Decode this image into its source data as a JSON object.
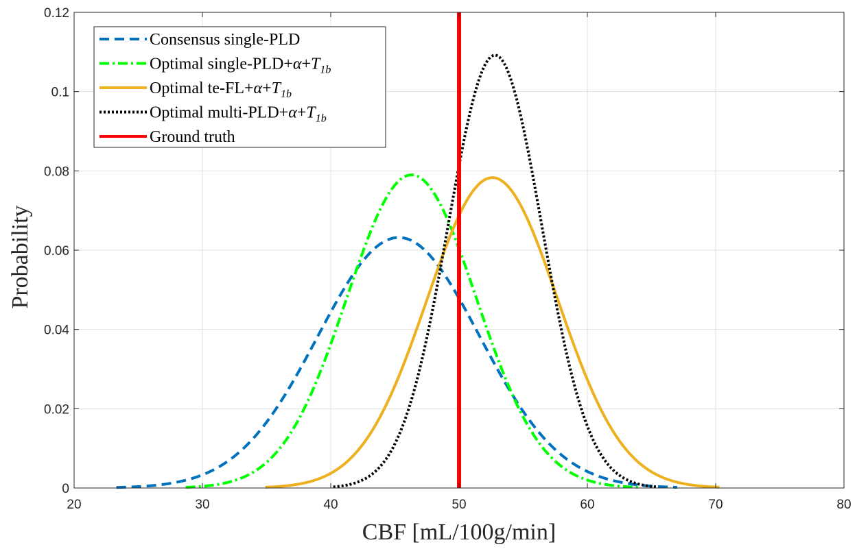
{
  "chart_data": {
    "type": "line",
    "title": "",
    "xlabel": "CBF [mL/100g/min]",
    "ylabel": "Probability",
    "xlim": [
      20,
      80
    ],
    "ylim": [
      0,
      0.12
    ],
    "xticks": [
      20,
      30,
      40,
      50,
      60,
      70,
      80
    ],
    "yticks": [
      0,
      0.02,
      0.04,
      0.06,
      0.08,
      0.1,
      0.12
    ],
    "xtick_labels": [
      "20",
      "30",
      "40",
      "50",
      "60",
      "70",
      "80"
    ],
    "ytick_labels": [
      "0",
      "0.02",
      "0.04",
      "0.06",
      "0.08",
      "0.1",
      "0.12"
    ],
    "grid": true,
    "legend_position": "top-left",
    "series": [
      {
        "name": "Consensus single-PLD",
        "legend": {
          "main": "Consensus single-PLD",
          "alpha": "",
          "T": "",
          "sub": ""
        },
        "style": "dashed",
        "color": "#0072bd",
        "mean": 45.3,
        "sd": 6.3,
        "x_range": [
          23.3,
          67.0
        ],
        "peak": 0.0632
      },
      {
        "name": "Optimal single-PLD+α+T1b",
        "legend": {
          "main": "Optimal single-PLD+",
          "alpha": "α",
          "T": "T",
          "sub": "1b"
        },
        "style": "dashdot",
        "color": "#00ff00",
        "mean": 46.3,
        "sd": 5.05,
        "x_range": [
          28.7,
          64.0
        ],
        "peak": 0.079
      },
      {
        "name": "Optimal te-FL+α+T1b",
        "legend": {
          "main": "Optimal te-FL+",
          "alpha": "α",
          "T": "T",
          "sub": "1b"
        },
        "style": "solid",
        "color": "#edb120",
        "mean": 52.6,
        "sd": 5.1,
        "x_range": [
          34.9,
          70.3
        ],
        "peak": 0.0783
      },
      {
        "name": "Optimal multi-PLD+α+T1b",
        "legend": {
          "main": "Optimal multi-PLD+",
          "alpha": "α",
          "T": "T",
          "sub": "1b"
        },
        "style": "dotted",
        "color": "#000000",
        "mean": 52.8,
        "sd": 3.65,
        "x_range": [
          40.2,
          65.5
        ],
        "peak": 0.1092
      },
      {
        "name": "Ground truth",
        "legend": {
          "main": "Ground truth",
          "alpha": "",
          "T": "",
          "sub": ""
        },
        "style": "vertical",
        "color": "#ff0000",
        "x": 50
      }
    ]
  }
}
